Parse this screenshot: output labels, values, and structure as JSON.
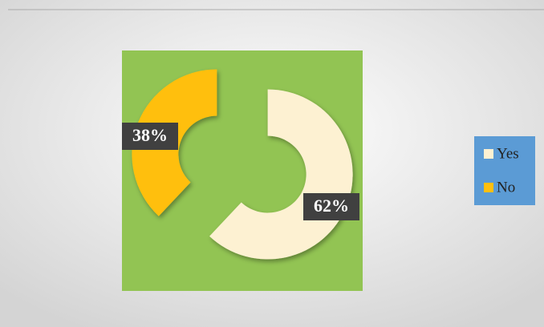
{
  "chart_data": {
    "type": "donut",
    "categories": [
      "Yes",
      "No"
    ],
    "values": [
      62,
      38
    ],
    "value_labels": [
      "62%",
      "38%"
    ],
    "colors": [
      "#fdf1d2",
      "#ffbf0e"
    ],
    "plot_background": "#92c453",
    "legend_background": "#5b9bd5",
    "legend": "right"
  }
}
